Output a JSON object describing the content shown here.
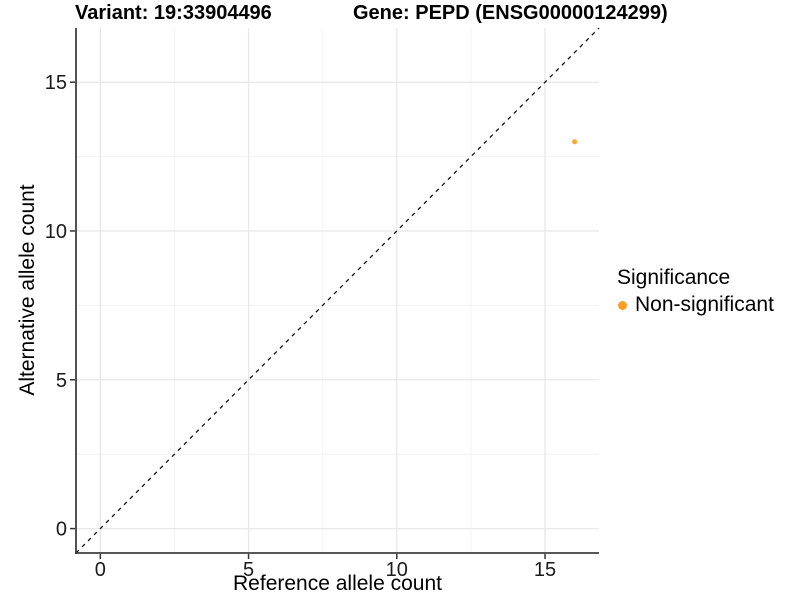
{
  "header": {
    "variant_title": "Variant: 19:33904496",
    "gene_title": "Gene: PEPD (ENSG00000124299)"
  },
  "chart_data": {
    "type": "scatter",
    "title_left": "Variant: 19:33904496",
    "title_right": "Gene: PEPD (ENSG00000124299)",
    "xlabel": "Reference allele count",
    "ylabel": "Alternative allele count",
    "xlim": [
      -0.82,
      16.82
    ],
    "ylim": [
      -0.82,
      16.82
    ],
    "x_ticks": [
      0,
      5,
      10,
      15
    ],
    "y_ticks": [
      0,
      5,
      10,
      15
    ],
    "x_minor_ticks": [
      2.5,
      7.5,
      12.5
    ],
    "y_minor_ticks": [
      2.5,
      7.5,
      12.5
    ],
    "grid": true,
    "reference_line": {
      "type": "diagonal",
      "slope": 1,
      "intercept": 0,
      "style": "dashed"
    },
    "series": [
      {
        "name": "Non-significant",
        "points": [
          {
            "x": 16,
            "y": 13
          }
        ]
      }
    ],
    "legend": {
      "title": "Significance",
      "position": "right",
      "items": [
        {
          "label": "Non-significant"
        }
      ]
    }
  },
  "colors": {
    "point": "#FB9E28",
    "legend_key": "#FB9E28",
    "grid_major": "#e8e8e8",
    "grid_minor": "#f3f3f3",
    "axis_line": "#3f3f3f",
    "tick_mark": "#333333",
    "tick_label": "#1a1a1a",
    "reference_line": "#111111",
    "background": "#ffffff"
  }
}
